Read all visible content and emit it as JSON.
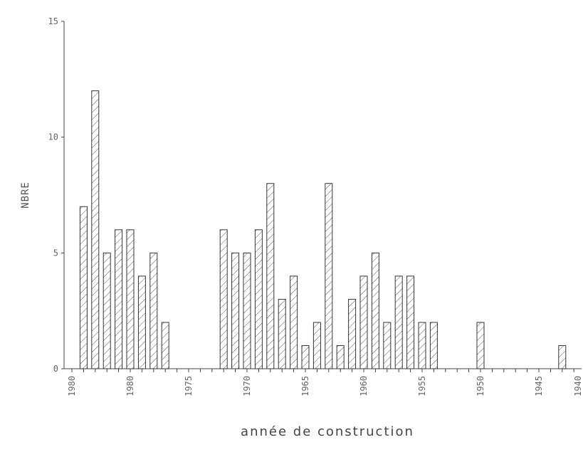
{
  "chart_data": {
    "type": "bar",
    "xlabel": "année de construction",
    "ylabel": "NBRE",
    "ylim": [
      0,
      15
    ],
    "yticks": [
      "0",
      "5",
      "10",
      "15"
    ],
    "xlim": [
      1983,
      1940
    ],
    "xticks": [
      "1980",
      "1980",
      "1975",
      "1970",
      "1965",
      "1960",
      "1955",
      "1950",
      "1945",
      "1940"
    ],
    "grid": false,
    "x": [
      1983,
      1982,
      1981,
      1980,
      1979,
      1978,
      1977,
      1976,
      1975,
      1974,
      1973,
      1972,
      1971,
      1970,
      1969,
      1968,
      1967,
      1966,
      1965,
      1964,
      1963,
      1962,
      1961,
      1960,
      1959,
      1958,
      1957,
      1956,
      1955,
      1954,
      1953,
      1952,
      1951,
      1950,
      1949,
      1948,
      1947,
      1946,
      1945,
      1944,
      1943,
      1942,
      1941,
      1940
    ],
    "values": [
      0,
      7,
      12,
      5,
      6,
      6,
      4,
      5,
      2,
      0,
      0,
      0,
      0,
      6,
      5,
      5,
      6,
      8,
      3,
      4,
      1,
      2,
      8,
      1,
      3,
      4,
      5,
      2,
      4,
      4,
      2,
      2,
      0,
      0,
      0,
      2,
      0,
      0,
      0,
      0,
      0,
      0,
      1,
      0
    ]
  }
}
